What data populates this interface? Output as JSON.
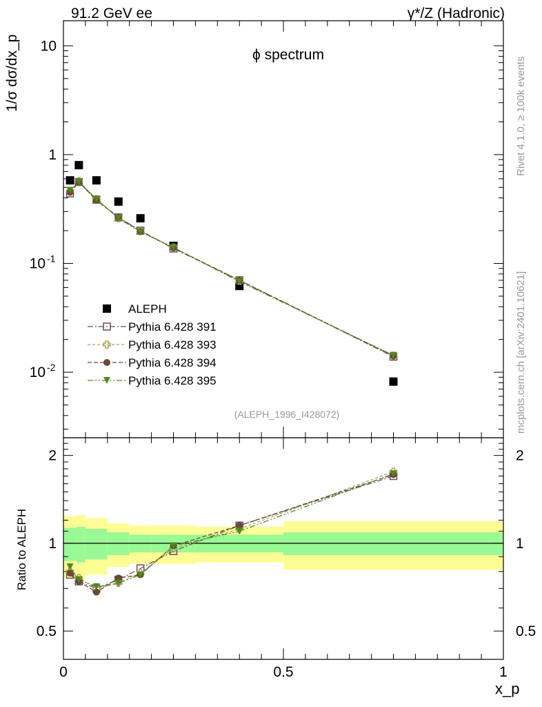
{
  "header": {
    "left": "91.2 GeV ee",
    "right": "γ*/Z (Hadronic)"
  },
  "side_labels": {
    "rivet": "Rivet 4.1.0, ≥ 100k events",
    "mcplots": "mcplots.cern.ch [arXiv:2401.10621]"
  },
  "colors": {
    "aleph": "#000000",
    "s391": "#6e4a5c",
    "s393": "#a5a35a",
    "s394": "#6b4a2e",
    "s395": "#4e8a1e",
    "band_inner": "#99f994",
    "band_outer": "#fdfd96",
    "watermark": "#999999"
  },
  "chart_data": [
    {
      "type": "scatter",
      "panel": "main",
      "title": "ϕ spectrum",
      "ylabel": "1/σ  dσ/dx_p",
      "xlabel": "",
      "yscale": "log",
      "xlim": [
        0,
        1
      ],
      "ylim": [
        0.0025,
        17
      ],
      "y_ticks": [
        "10",
        "1",
        "10^-1",
        "10^-2"
      ],
      "watermark": "(ALEPH_1996_I428072)",
      "legend": [
        "ALEPH",
        "Pythia 6.428 391",
        "Pythia 6.428 393",
        "Pythia 6.428 394",
        "Pythia 6.428 395"
      ],
      "legend_position": "lower-left",
      "x": [
        0.015,
        0.035,
        0.075,
        0.125,
        0.175,
        0.25,
        0.4,
        0.75
      ],
      "bins": [
        [
          0.0,
          0.03
        ],
        [
          0.03,
          0.05
        ],
        [
          0.05,
          0.1
        ],
        [
          0.1,
          0.15
        ],
        [
          0.15,
          0.2
        ],
        [
          0.2,
          0.3
        ],
        [
          0.3,
          0.5
        ],
        [
          0.5,
          1.0
        ]
      ],
      "series": [
        {
          "name": "ALEPH",
          "key": "aleph",
          "marker": "square",
          "line": false,
          "values": [
            0.58,
            0.8,
            0.58,
            0.37,
            0.26,
            0.145,
            0.062,
            0.0082
          ]
        },
        {
          "name": "Pythia 6.428 391",
          "key": "s391",
          "marker": "open-square",
          "line": true,
          "values": [
            0.44,
            0.56,
            0.385,
            0.265,
            0.2,
            0.137,
            0.07,
            0.0139
          ]
        },
        {
          "name": "Pythia 6.428 393",
          "key": "s393",
          "marker": "open-cross",
          "line": true,
          "values": [
            0.46,
            0.57,
            0.39,
            0.26,
            0.197,
            0.14,
            0.069,
            0.0142
          ]
        },
        {
          "name": "Pythia 6.428 394",
          "key": "s394",
          "marker": "circle",
          "line": true,
          "values": [
            0.45,
            0.56,
            0.38,
            0.265,
            0.197,
            0.139,
            0.07,
            0.0141
          ]
        },
        {
          "name": "Pythia 6.428 395",
          "key": "s395",
          "marker": "triangle-down",
          "line": true,
          "values": [
            0.47,
            0.56,
            0.39,
            0.26,
            0.195,
            0.14,
            0.068,
            0.0143
          ]
        }
      ]
    },
    {
      "type": "scatter",
      "panel": "ratio",
      "ylabel": "Ratio to ALEPH",
      "xlabel": "x_p",
      "yscale": "log",
      "xlim": [
        0,
        1
      ],
      "ylim": [
        0.4,
        2.3
      ],
      "x_ticks": [
        "0",
        "0.5",
        "1"
      ],
      "y_ticks": [
        "2",
        "1",
        "0.5"
      ],
      "bands": {
        "inner_half_width": [
          0.13,
          0.14,
          0.12,
          0.09,
          0.07,
          0.07,
          0.07,
          0.09
        ],
        "outer_half_width": [
          0.24,
          0.25,
          0.22,
          0.17,
          0.15,
          0.15,
          0.14,
          0.19
        ]
      },
      "x": [
        0.015,
        0.035,
        0.075,
        0.125,
        0.175,
        0.25,
        0.4,
        0.75
      ],
      "series": [
        {
          "name": "Pythia 6.428 391",
          "key": "s391",
          "marker": "open-square",
          "values": [
            0.78,
            0.74,
            0.7,
            0.75,
            0.82,
            0.94,
            1.15,
            1.7
          ]
        },
        {
          "name": "Pythia 6.428 393",
          "key": "s393",
          "marker": "open-cross",
          "values": [
            0.8,
            0.76,
            0.7,
            0.73,
            0.79,
            0.96,
            1.12,
            1.76
          ]
        },
        {
          "name": "Pythia 6.428 394",
          "key": "s394",
          "marker": "circle",
          "values": [
            0.79,
            0.74,
            0.68,
            0.76,
            0.78,
            0.98,
            1.15,
            1.72
          ]
        },
        {
          "name": "Pythia 6.428 395",
          "key": "s395",
          "marker": "triangle-down",
          "values": [
            0.83,
            0.75,
            0.71,
            0.73,
            0.78,
            0.98,
            1.1,
            1.73
          ]
        }
      ]
    }
  ]
}
